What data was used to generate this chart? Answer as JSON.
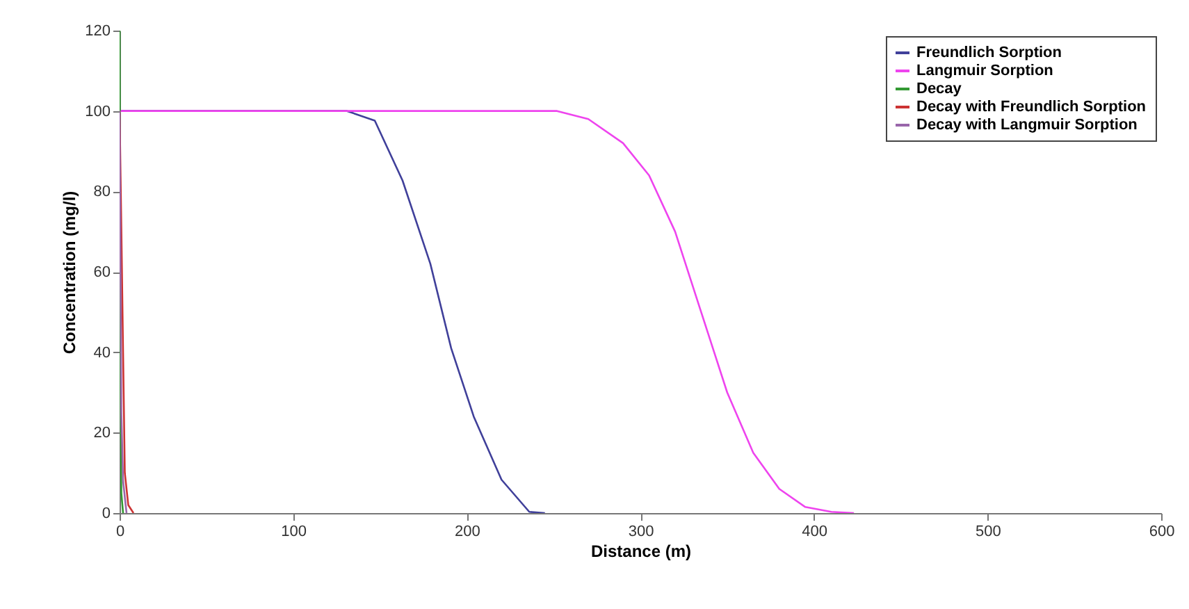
{
  "chart_data": {
    "type": "line",
    "xlabel": "Distance (m)",
    "ylabel": "Concentration (mg/l)",
    "xlim": [
      0,
      600
    ],
    "xticks": [
      0,
      100,
      200,
      300,
      400,
      500,
      600
    ],
    "ylim": [
      0,
      120
    ],
    "yticks": [
      0,
      20,
      40,
      60,
      80,
      100,
      120
    ],
    "grid": false,
    "legend": "top right",
    "marker": "none",
    "line_style": "solid",
    "series": [
      {
        "name": "Freundlich Sorption",
        "color": "#40409a",
        "x": [
          0,
          131,
          147,
          163,
          179,
          191,
          204,
          220,
          236,
          245
        ],
        "values": [
          100,
          100,
          97.6,
          82.7,
          62,
          41,
          24,
          8.3,
          0.3,
          0
        ]
      },
      {
        "name": "Langmuir Sorption",
        "color": "#ee44ee",
        "x": [
          0,
          252,
          270,
          290,
          305,
          320,
          335,
          350,
          365,
          380,
          395,
          410,
          423
        ],
        "values": [
          100,
          100,
          98,
          92,
          84,
          70,
          50,
          30,
          15,
          6,
          1.5,
          0.3,
          0
        ]
      },
      {
        "name": "Decay",
        "color": "#339933",
        "x": [
          0,
          0.5,
          1,
          2
        ],
        "values": [
          120,
          40,
          5,
          0
        ]
      },
      {
        "name": "Decay with Freundlich Sorption",
        "color": "#cc3333",
        "x": [
          0,
          1,
          2,
          3,
          5,
          8
        ],
        "values": [
          100,
          71,
          40,
          10,
          2,
          0
        ]
      },
      {
        "name": "Decay with Langmuir Sorption",
        "color": "#9966aa",
        "x": [
          0,
          1,
          2,
          4
        ],
        "values": [
          100,
          25,
          8,
          0
        ]
      }
    ]
  }
}
